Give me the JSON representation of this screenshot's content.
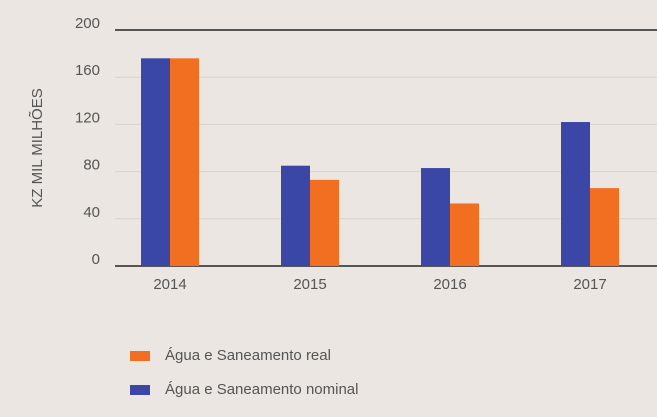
{
  "chart_data": {
    "type": "bar",
    "y_label": "KZ MIL MILHÕES",
    "categories": [
      "2014",
      "2015",
      "2016",
      "2017"
    ],
    "series": [
      {
        "name": "Água e Saneamento real",
        "color": "#f26f21",
        "values": [
          176,
          73,
          53,
          66
        ]
      },
      {
        "name": "Água e Saneamento nominal",
        "color": "#3a47a6",
        "values": [
          176,
          85,
          83,
          122
        ]
      }
    ],
    "ylim": [
      0,
      200
    ],
    "yticks": [
      0,
      40,
      80,
      120,
      160,
      200
    ],
    "grid": true
  }
}
